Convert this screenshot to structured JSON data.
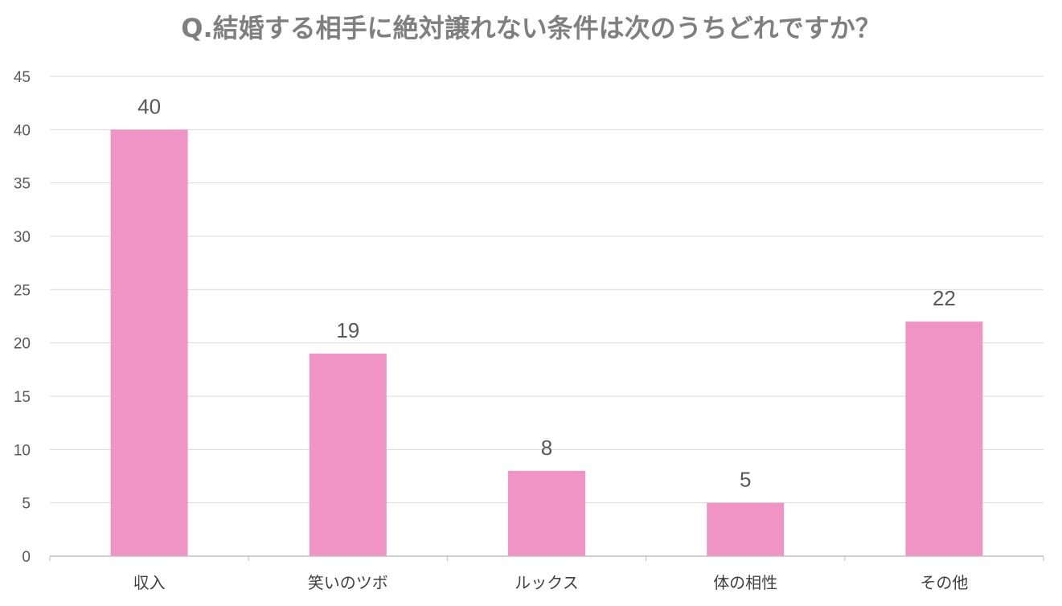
{
  "chart_data": {
    "type": "bar",
    "title": "Q.結婚する相手に絶対譲れない条件は次のうちどれですか？",
    "categories": [
      "収入",
      "笑いのツボ",
      "ルックス",
      "体の相性",
      "その他"
    ],
    "values": [
      40,
      19,
      8,
      5,
      22
    ],
    "data_labels": [
      "40",
      "19",
      "8",
      "5",
      "22"
    ],
    "ylim": [
      0,
      45
    ],
    "yticks": [
      0,
      5,
      10,
      15,
      20,
      25,
      30,
      35,
      40,
      45
    ],
    "xlabel": "",
    "ylabel": "",
    "grid": true,
    "legend": "none",
    "bar_color": "#f093c5",
    "grid_color": "#d9d9d9"
  }
}
